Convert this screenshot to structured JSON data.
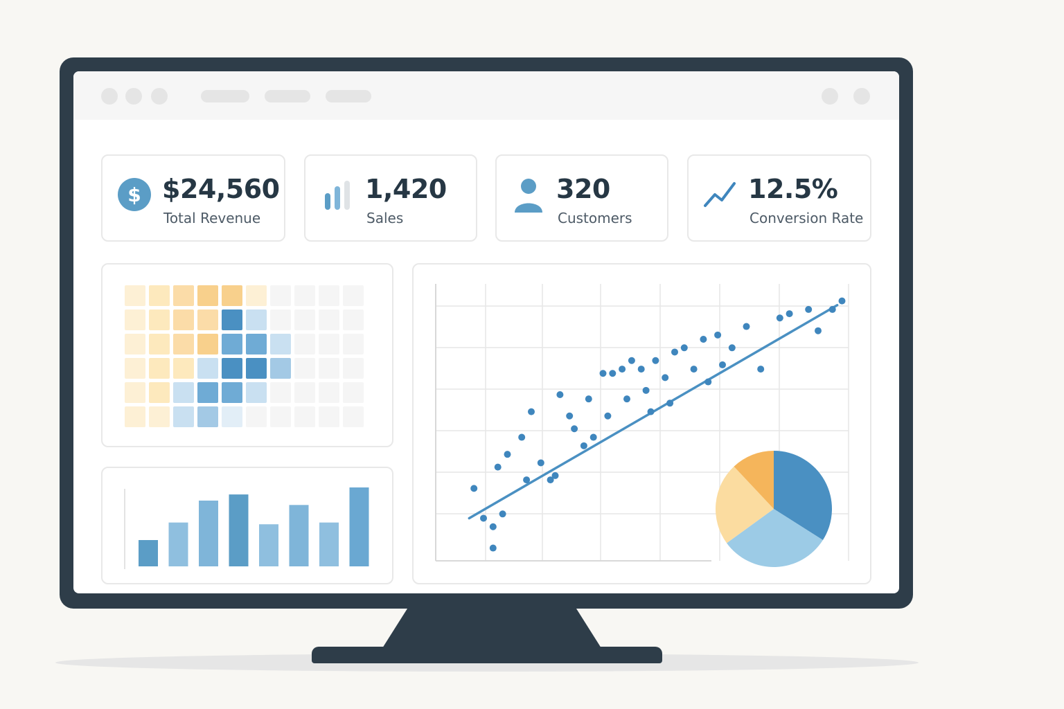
{
  "colors": {
    "accent_blue": "#4a90c2",
    "accent_orange": "#f5b55b",
    "frame": "#2e3d49",
    "text_dark": "#263744"
  },
  "kpis": [
    {
      "icon": "dollar-icon",
      "value": "$24,560",
      "label": "Total Revenue"
    },
    {
      "icon": "bar-chart-icon",
      "value": "1,420",
      "label": "Sales"
    },
    {
      "icon": "user-icon",
      "value": "320",
      "label": "Customers"
    },
    {
      "icon": "trend-line-icon",
      "value": "12.5%",
      "label": "Conversion Rate"
    }
  ],
  "heatmap": {
    "rows": [
      [
        "y1",
        "y2",
        "y3",
        "y4",
        "y4",
        "y1",
        "n",
        "n",
        "n",
        "n"
      ],
      [
        "y1",
        "y2",
        "y3",
        "y3",
        "b4",
        "b1",
        "n",
        "n",
        "n",
        "n"
      ],
      [
        "y1",
        "y2",
        "y3",
        "y4",
        "b3",
        "b3",
        "b1",
        "n",
        "n",
        "n"
      ],
      [
        "y1",
        "y2",
        "y2",
        "b1",
        "b4",
        "b4",
        "b2",
        "n",
        "n",
        "n"
      ],
      [
        "y1",
        "y2",
        "b1",
        "b3",
        "b3",
        "b1",
        "n",
        "n",
        "n",
        "n"
      ],
      [
        "y1",
        "y1",
        "b1",
        "b2",
        "b0",
        "n",
        "n",
        "n",
        "n",
        "n"
      ]
    ],
    "palette": {
      "n": "#f5f5f5",
      "y1": "#fdf0d5",
      "y2": "#fde9bd",
      "y3": "#fbdca8",
      "y4": "#f8d08c",
      "b0": "#e2eef7",
      "b1": "#c9e0f1",
      "b2": "#a3c9e5",
      "b3": "#6fabd5",
      "b4": "#4a90c2"
    }
  },
  "bar_chart": {
    "values": [
      3,
      5,
      7.5,
      8.2,
      4.8,
      7,
      5,
      9
    ]
  },
  "scatter": {
    "points": [
      [
        0.8,
        5.7
      ],
      [
        1.0,
        5.0
      ],
      [
        1.2,
        4.3
      ],
      [
        1.3,
        6.2
      ],
      [
        1.4,
        5.1
      ],
      [
        1.5,
        6.5
      ],
      [
        1.8,
        6.9
      ],
      [
        1.9,
        5.9
      ],
      [
        2.0,
        7.5
      ],
      [
        2.2,
        6.3
      ],
      [
        2.4,
        5.9
      ],
      [
        2.6,
        7.9
      ],
      [
        2.8,
        7.4
      ],
      [
        2.9,
        7.1
      ],
      [
        3.1,
        6.7
      ],
      [
        3.2,
        7.8
      ],
      [
        3.5,
        8.4
      ],
      [
        3.6,
        7.4
      ],
      [
        3.7,
        8.4
      ],
      [
        3.9,
        8.5
      ],
      [
        4.0,
        7.8
      ],
      [
        4.1,
        8.7
      ],
      [
        4.3,
        8.5
      ],
      [
        4.4,
        8.0
      ],
      [
        4.5,
        7.5
      ],
      [
        4.6,
        8.7
      ],
      [
        4.8,
        8.3
      ],
      [
        5.0,
        8.9
      ],
      [
        5.2,
        9.0
      ],
      [
        5.4,
        8.5
      ],
      [
        5.6,
        9.2
      ],
      [
        5.9,
        9.3
      ],
      [
        6.0,
        8.6
      ],
      [
        6.2,
        9.0
      ],
      [
        6.5,
        9.5
      ],
      [
        6.8,
        8.5
      ],
      [
        7.2,
        9.7
      ],
      [
        7.4,
        9.8
      ],
      [
        7.8,
        9.9
      ],
      [
        8.0,
        9.4
      ],
      [
        8.3,
        9.9
      ],
      [
        8.5,
        10.1
      ],
      [
        1.2,
        4.8
      ],
      [
        2.5,
        6.0
      ],
      [
        5.7,
        8.2
      ],
      [
        3.3,
        6.9
      ],
      [
        4.9,
        7.7
      ]
    ],
    "trend": [
      [
        0.7,
        5.0
      ],
      [
        8.4,
        10.0
      ]
    ],
    "xlim": [
      0,
      10
    ],
    "ylim": [
      4,
      10.5
    ]
  },
  "pie_chart": {
    "slices": [
      {
        "value": 34,
        "color": "#4a90c2"
      },
      {
        "value": 31,
        "color": "#9ccbe6"
      },
      {
        "value": 23,
        "color": "#fbdca0"
      },
      {
        "value": 12,
        "color": "#f5b55b"
      }
    ]
  }
}
